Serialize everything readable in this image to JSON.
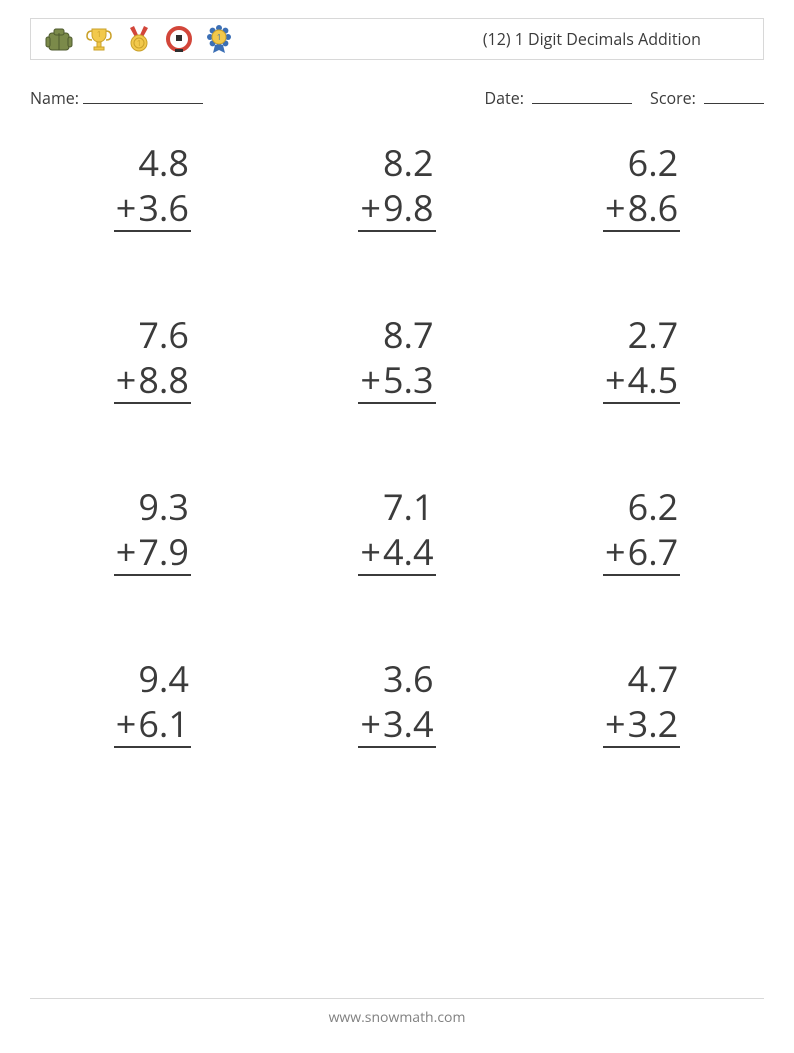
{
  "header": {
    "title": "(12) 1 Digit Decimals Addition",
    "title_fontsize": 16,
    "box_border_color": "#d8d8d8"
  },
  "icons": [
    {
      "name": "backpack-icon",
      "primary": "#7b8a4a",
      "accent": "#4e5a2e"
    },
    {
      "name": "trophy-icon",
      "primary": "#f2c94c",
      "accent": "#caa12a"
    },
    {
      "name": "medal-icon",
      "primary": "#f2c94c",
      "accent": "#d2463a"
    },
    {
      "name": "ring-icon",
      "primary": "#d2463a",
      "accent": "#2f2f2f"
    },
    {
      "name": "rosette-icon",
      "primary": "#3b6fb5",
      "accent": "#f2c94c"
    }
  ],
  "info": {
    "name_label": "Name:",
    "date_label": "Date:",
    "score_label": "Score:",
    "name_underline_w": 120,
    "date_underline_w": 100,
    "score_underline_w": 60
  },
  "problems_style": {
    "fontsize": 36,
    "text_color": "#3b3b3b",
    "rule_color": "#3b3b3b",
    "columns": 3,
    "rows": 4,
    "operator": "+"
  },
  "problems": [
    {
      "a": "4.8",
      "b": "3.6"
    },
    {
      "a": "8.2",
      "b": "9.8"
    },
    {
      "a": "6.2",
      "b": "8.6"
    },
    {
      "a": "7.6",
      "b": "8.8"
    },
    {
      "a": "8.7",
      "b": "5.3"
    },
    {
      "a": "2.7",
      "b": "4.5"
    },
    {
      "a": "9.3",
      "b": "7.9"
    },
    {
      "a": "7.1",
      "b": "4.4"
    },
    {
      "a": "6.2",
      "b": "6.7"
    },
    {
      "a": "9.4",
      "b": "6.1"
    },
    {
      "a": "3.6",
      "b": "3.4"
    },
    {
      "a": "4.7",
      "b": "3.2"
    }
  ],
  "footer": {
    "text": "www.snowmath.com",
    "color": "#808080",
    "rule_color": "#d8d8d8"
  },
  "page_bg": "#ffffff"
}
